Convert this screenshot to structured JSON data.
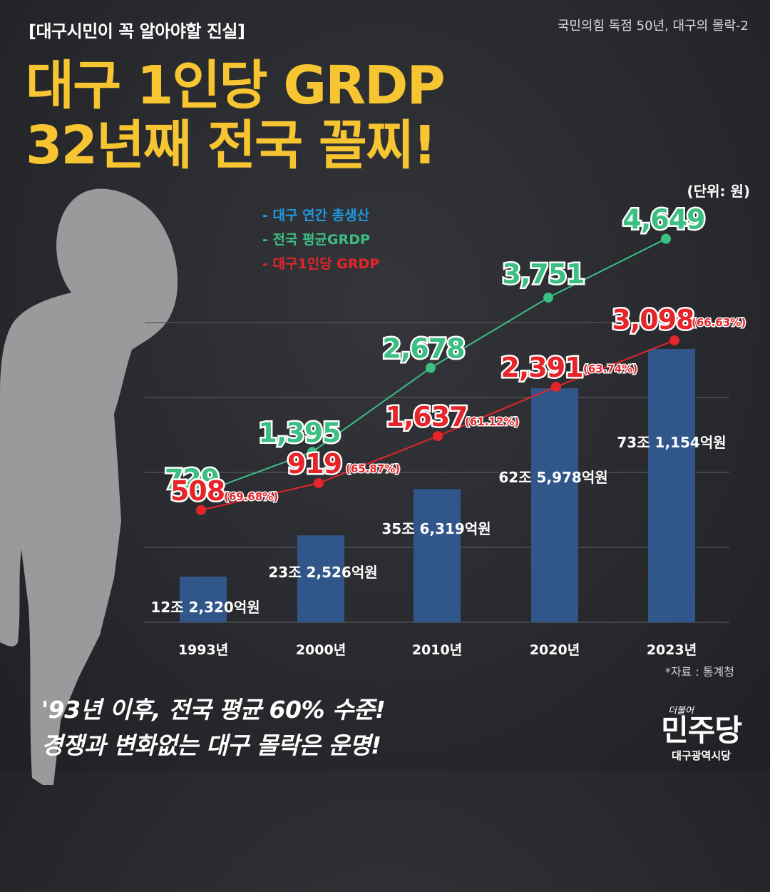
{
  "header": {
    "tag": "[대구시민이 꼭 알아야할 진실]",
    "series": "국민의힘 독점 50년, 대구의 몰락-2",
    "headline_1": "대구 1인당 GRDP",
    "headline_2": "32년째 전국 꼴찌!"
  },
  "unit": "(단위: 원)",
  "source": "*자료 : 통계청",
  "footer": {
    "line_1": "'93년 이후, 전국 평균 60% 수준!",
    "line_2": "경쟁과 변화없는 대구 몰락은 운명!"
  },
  "logo": {
    "small": "더불어",
    "big": "민주당",
    "sub": "대구광역시당"
  },
  "colors": {
    "bar": "#31568a",
    "national_line": "#3dbf84",
    "daegu_line": "#e5252a",
    "headline": "#f7c531",
    "legend_bar": "#1e9be0"
  },
  "chart_data": {
    "type": "bar",
    "categories": [
      "1993년",
      "2000년",
      "2010년",
      "2020년",
      "2023년"
    ],
    "legend_position": "top-left",
    "grid": true,
    "series": [
      {
        "name": "- 대구 연간 총생산",
        "kind": "bar",
        "values": [
          12.232,
          23.2526,
          35.6319,
          62.5978,
          73.1154
        ],
        "labels": [
          "12조 2,320억원",
          "23조 2,526억원",
          "35조 6,319억원",
          "62조 5,978억원",
          "73조 1,154억원"
        ]
      },
      {
        "name": "- 전국 평균GRDP",
        "kind": "line",
        "values": [
          729,
          1395,
          2678,
          3751,
          4649
        ],
        "labels": [
          "729",
          "1,395",
          "2,678",
          "3,751",
          "4,649"
        ]
      },
      {
        "name": "- 대구1인당 GRDP",
        "kind": "line",
        "values": [
          508,
          919,
          1637,
          2391,
          3098
        ],
        "labels": [
          "508",
          "919",
          "1,637",
          "2,391",
          "3,098"
        ],
        "ratio_labels": [
          "(69.68%)",
          "(65.87%)",
          "(61.12%)",
          "(63.74%)",
          "(66.63%)"
        ]
      }
    ]
  }
}
